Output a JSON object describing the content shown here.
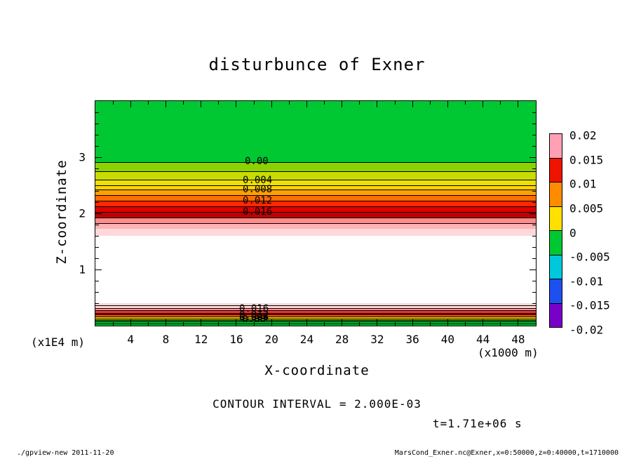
{
  "title": "disturbunce of Exner",
  "axes": {
    "x_label": "X-coordinate",
    "x_unit": "(x1000 m)",
    "y_label": "Z-coordinate",
    "y_unit": "(x1E4 m)"
  },
  "annotations": {
    "contour_interval": "CONTOUR INTERVAL = 2.000E-03",
    "time": "t=1.71e+06 s"
  },
  "footer": {
    "left": "./gpview-new  2011-11-20",
    "right": "MarsCond_Exner.nc@Exner,x=0:50000,z=0:40000,t=1710000"
  },
  "chart_data": {
    "type": "contour",
    "title": "disturbunce of Exner",
    "xlabel": "X-coordinate",
    "xlabel_unit": "(x1000 m)",
    "ylabel": "Z-coordinate",
    "ylabel_unit": "(x1E4 m)",
    "xlim": [
      0,
      50
    ],
    "ylim": [
      0,
      4
    ],
    "x_tick_labels": [
      4,
      8,
      12,
      16,
      20,
      24,
      28,
      32,
      36,
      40,
      44,
      48
    ],
    "x_major_tick_step": 4,
    "x_minor_tick_step": 2,
    "y_tick_labels": [
      1,
      2,
      3
    ],
    "y_major_tick_step": 1,
    "y_minor_tick_step": 0.2,
    "grid": false,
    "contour_interval": 0.002,
    "labeled_contour_levels": [
      0,
      0.004,
      0.008,
      0.012,
      0.016
    ],
    "time_label": "t=1.71e+06 s",
    "colorbar": {
      "position": "right",
      "tick_labels": [
        "0.02",
        "0.015",
        "0.01",
        "0.005",
        "0",
        "-0.005",
        "-0.01",
        "-0.015",
        "-0.02"
      ],
      "segment_colors": [
        "#FFA0B4",
        "#F01400",
        "#FF8C00",
        "#FFE100",
        "#00C832",
        "#00C8DC",
        "#1E50F0",
        "#7800C8"
      ]
    },
    "field_bands": [
      {
        "z_top": 4.0,
        "z_bottom": 2.91,
        "color": "#00C832"
      },
      {
        "z_top": 2.91,
        "z_bottom": 2.74,
        "color": "#8CD200"
      },
      {
        "z_top": 2.74,
        "z_bottom": 2.59,
        "color": "#C8DC00"
      },
      {
        "z_top": 2.59,
        "z_bottom": 2.5,
        "color": "#EEE000"
      },
      {
        "z_top": 2.5,
        "z_bottom": 2.42,
        "color": "#FFD200"
      },
      {
        "z_top": 2.42,
        "z_bottom": 2.32,
        "color": "#FFA000"
      },
      {
        "z_top": 2.32,
        "z_bottom": 2.22,
        "color": "#FF6E00"
      },
      {
        "z_top": 2.22,
        "z_bottom": 2.12,
        "color": "#FF2800"
      },
      {
        "z_top": 2.12,
        "z_bottom": 2.02,
        "color": "#E10000"
      },
      {
        "z_top": 2.02,
        "z_bottom": 1.92,
        "color": "#C00000"
      },
      {
        "z_top": 1.92,
        "z_bottom": 1.82,
        "color": "#FF8C8C"
      },
      {
        "z_top": 1.82,
        "z_bottom": 1.72,
        "color": "#FFB4B4"
      },
      {
        "z_top": 1.72,
        "z_bottom": 1.6,
        "color": "#FFD9D9"
      },
      {
        "z_top": 1.6,
        "z_bottom": 0.4,
        "color": "#FFFFFF"
      },
      {
        "z_top": 0.4,
        "z_bottom": 0.31,
        "color": "#FFD9D9"
      },
      {
        "z_top": 0.31,
        "z_bottom": 0.265,
        "color": "#FF9696"
      },
      {
        "z_top": 0.265,
        "z_bottom": 0.225,
        "color": "#F03232"
      },
      {
        "z_top": 0.225,
        "z_bottom": 0.19,
        "color": "#C80000"
      },
      {
        "z_top": 0.19,
        "z_bottom": 0.155,
        "color": "#FF5A00"
      },
      {
        "z_top": 0.155,
        "z_bottom": 0.125,
        "color": "#FFC800"
      },
      {
        "z_top": 0.125,
        "z_bottom": 0.09,
        "color": "#A0D200"
      },
      {
        "z_top": 0.09,
        "z_bottom": 0.0,
        "color": "#00C832"
      }
    ],
    "contour_lines_z": [
      2.91,
      2.74,
      2.59,
      2.5,
      2.42,
      2.32,
      2.22,
      2.12,
      2.02,
      1.92,
      1.82,
      0.36,
      0.31,
      0.265,
      0.225,
      0.19,
      0.155,
      0.125,
      0.095,
      0.065,
      0.035
    ],
    "contour_labels": [
      {
        "text": "0.00",
        "x": 18.3,
        "z": 2.92
      },
      {
        "text": "0.004",
        "x": 18.4,
        "z": 2.59
      },
      {
        "text": "0.008",
        "x": 18.4,
        "z": 2.42
      },
      {
        "text": "0.012",
        "x": 18.4,
        "z": 2.22
      },
      {
        "text": "0.016",
        "x": 18.4,
        "z": 2.02
      },
      {
        "text": "0.016",
        "x": 18.0,
        "z": 0.3
      },
      {
        "text": "0.012",
        "x": 18.0,
        "z": 0.185
      },
      {
        "text": "0.008",
        "x": 18.0,
        "z": 0.155
      },
      {
        "text": "0.004",
        "x": 18.0,
        "z": 0.135
      },
      {
        "text": "0.00",
        "x": 18.0,
        "z": 0.115
      }
    ]
  }
}
